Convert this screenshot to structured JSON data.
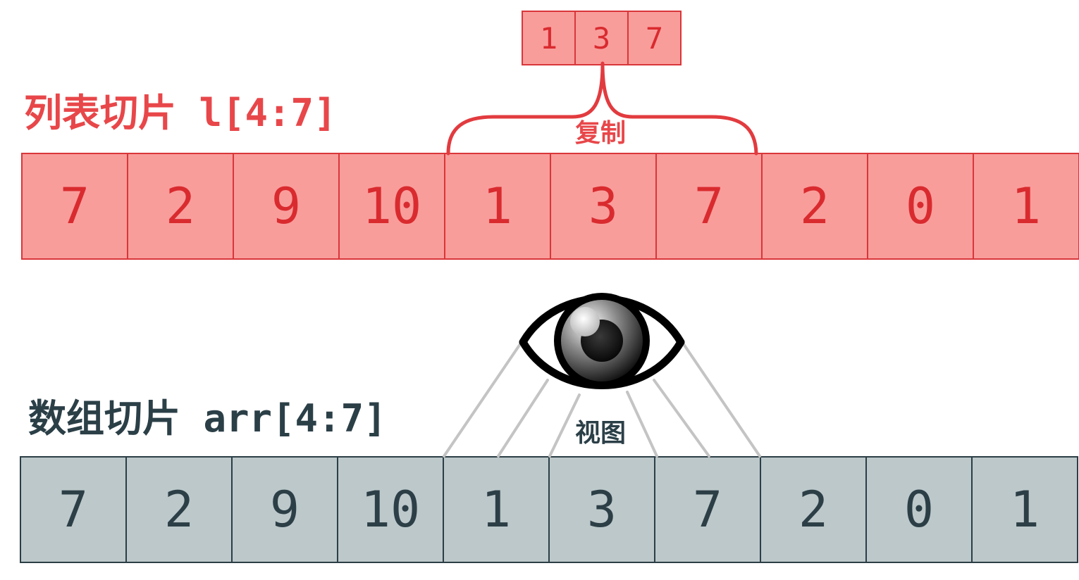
{
  "list_slice": {
    "title": "列表切片 l[4:7]",
    "values": [
      "7",
      "2",
      "9",
      "10",
      "1",
      "3",
      "7",
      "2",
      "0",
      "1"
    ],
    "copied_values": [
      "1",
      "3",
      "7"
    ],
    "copy_label": "复制"
  },
  "array_slice": {
    "title": "数组切片 arr[4:7]",
    "values": [
      "7",
      "2",
      "9",
      "10",
      "1",
      "3",
      "7",
      "2",
      "0",
      "1"
    ],
    "view_label": "视图"
  },
  "icons": {
    "eye": "eye-icon",
    "brace": "curly-brace"
  },
  "colors": {
    "list_fill": "#f99d9b",
    "list_border": "#d9363a",
    "list_text": "#d92b2f",
    "list_title": "#e8474a",
    "array_fill": "#bcc8ca",
    "array_border": "#2c3e46",
    "array_text": "#2c3e46",
    "view_lines": "#c4c4c4"
  }
}
